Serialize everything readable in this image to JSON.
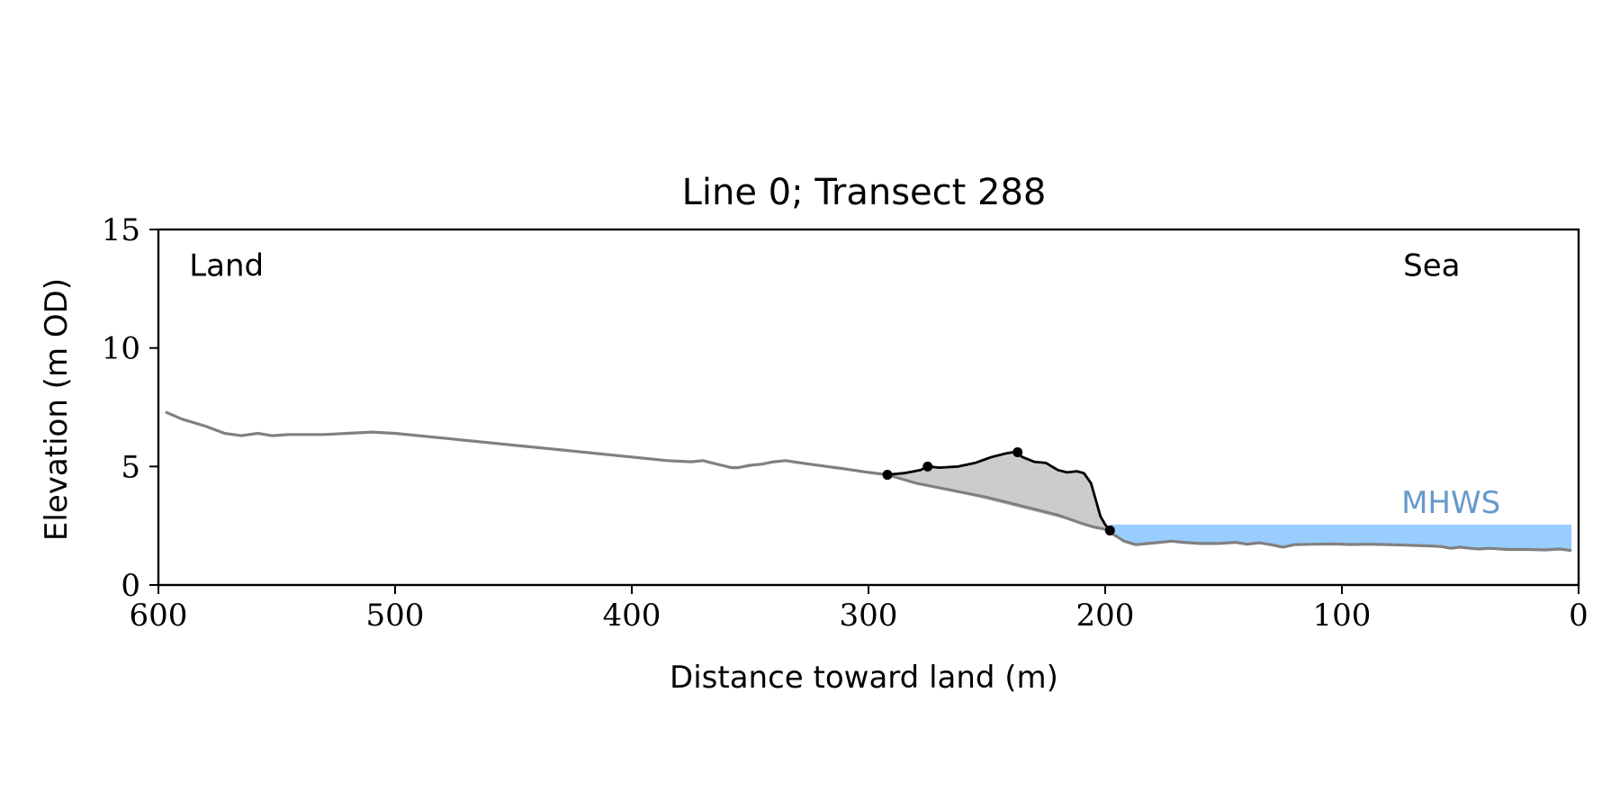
{
  "chart_data": {
    "type": "line",
    "title": "Line 0; Transect 288",
    "xlabel": "Distance toward land (m)",
    "ylabel": "Elevation (m OD)",
    "xlim": [
      600,
      0
    ],
    "ylim": [
      0,
      15
    ],
    "x_ticks": [
      600,
      500,
      400,
      300,
      200,
      100,
      0
    ],
    "y_ticks": [
      0,
      5,
      10,
      15
    ],
    "grid": false,
    "annotations": [
      {
        "text": "Land",
        "x": 587,
        "y": 13.5,
        "anchor": "start",
        "color": "#000000"
      },
      {
        "text": "Sea",
        "x": 50,
        "y": 13.5,
        "anchor": "end",
        "color": "#000000"
      },
      {
        "text": "MHWS",
        "x": 33,
        "y": 3.5,
        "anchor": "end",
        "color": "#6699cc"
      }
    ],
    "mhws_level": 2.55,
    "series": [
      {
        "role": "full profile",
        "color": "#808080",
        "x": [
          597,
          590,
          580,
          572,
          565,
          558,
          552,
          545,
          530,
          510,
          500,
          480,
          450,
          420,
          400,
          385,
          375,
          370,
          366,
          362,
          358,
          355,
          350,
          345,
          340,
          335,
          325,
          310,
          300,
          292,
          280,
          260,
          250,
          240,
          230,
          220,
          210,
          205,
          200,
          196,
          192,
          187,
          182,
          177,
          172,
          167,
          160,
          152,
          145,
          140,
          135,
          130,
          125,
          120,
          112,
          104,
          96,
          88,
          80,
          72,
          64,
          58,
          54,
          50,
          46,
          42,
          38,
          30,
          22,
          14,
          8,
          3
        ],
        "y": [
          7.3,
          7.0,
          6.7,
          6.4,
          6.3,
          6.4,
          6.3,
          6.35,
          6.35,
          6.45,
          6.4,
          6.2,
          5.9,
          5.6,
          5.4,
          5.25,
          5.2,
          5.25,
          5.15,
          5.05,
          4.95,
          4.95,
          5.05,
          5.1,
          5.2,
          5.25,
          5.1,
          4.9,
          4.75,
          4.65,
          4.3,
          3.9,
          3.7,
          3.45,
          3.2,
          2.95,
          2.6,
          2.45,
          2.35,
          2.1,
          1.85,
          1.7,
          1.75,
          1.8,
          1.85,
          1.8,
          1.75,
          1.75,
          1.8,
          1.72,
          1.78,
          1.7,
          1.6,
          1.7,
          1.72,
          1.73,
          1.71,
          1.72,
          1.7,
          1.68,
          1.65,
          1.62,
          1.55,
          1.6,
          1.55,
          1.52,
          1.55,
          1.5,
          1.5,
          1.48,
          1.52,
          1.45
        ]
      },
      {
        "role": "dune crest profile",
        "color": "#000000",
        "x": [
          292,
          285,
          278,
          275,
          270,
          262,
          255,
          248,
          242,
          238,
          235,
          230,
          225,
          220,
          216,
          212,
          209,
          206,
          204,
          202,
          200,
          198
        ],
        "y": [
          4.65,
          4.72,
          4.85,
          5.0,
          4.95,
          5.0,
          5.15,
          5.4,
          5.55,
          5.62,
          5.4,
          5.2,
          5.15,
          4.85,
          4.75,
          4.8,
          4.72,
          4.3,
          3.6,
          2.9,
          2.55,
          2.3
        ]
      },
      {
        "role": "key points",
        "color": "#000000",
        "type": "scatter",
        "x": [
          292,
          275,
          237,
          198
        ],
        "y": [
          4.65,
          5.0,
          5.6,
          2.3
        ]
      }
    ],
    "shaded_region": {
      "role": "dune volume",
      "color": "#cccccc",
      "between": "dune crest profile and straight line from (292, 4.65) to (198, 2.3)"
    },
    "water_fill": {
      "color": "#99ccff",
      "x_start": 198,
      "x_end": 3,
      "level": 2.55
    }
  }
}
